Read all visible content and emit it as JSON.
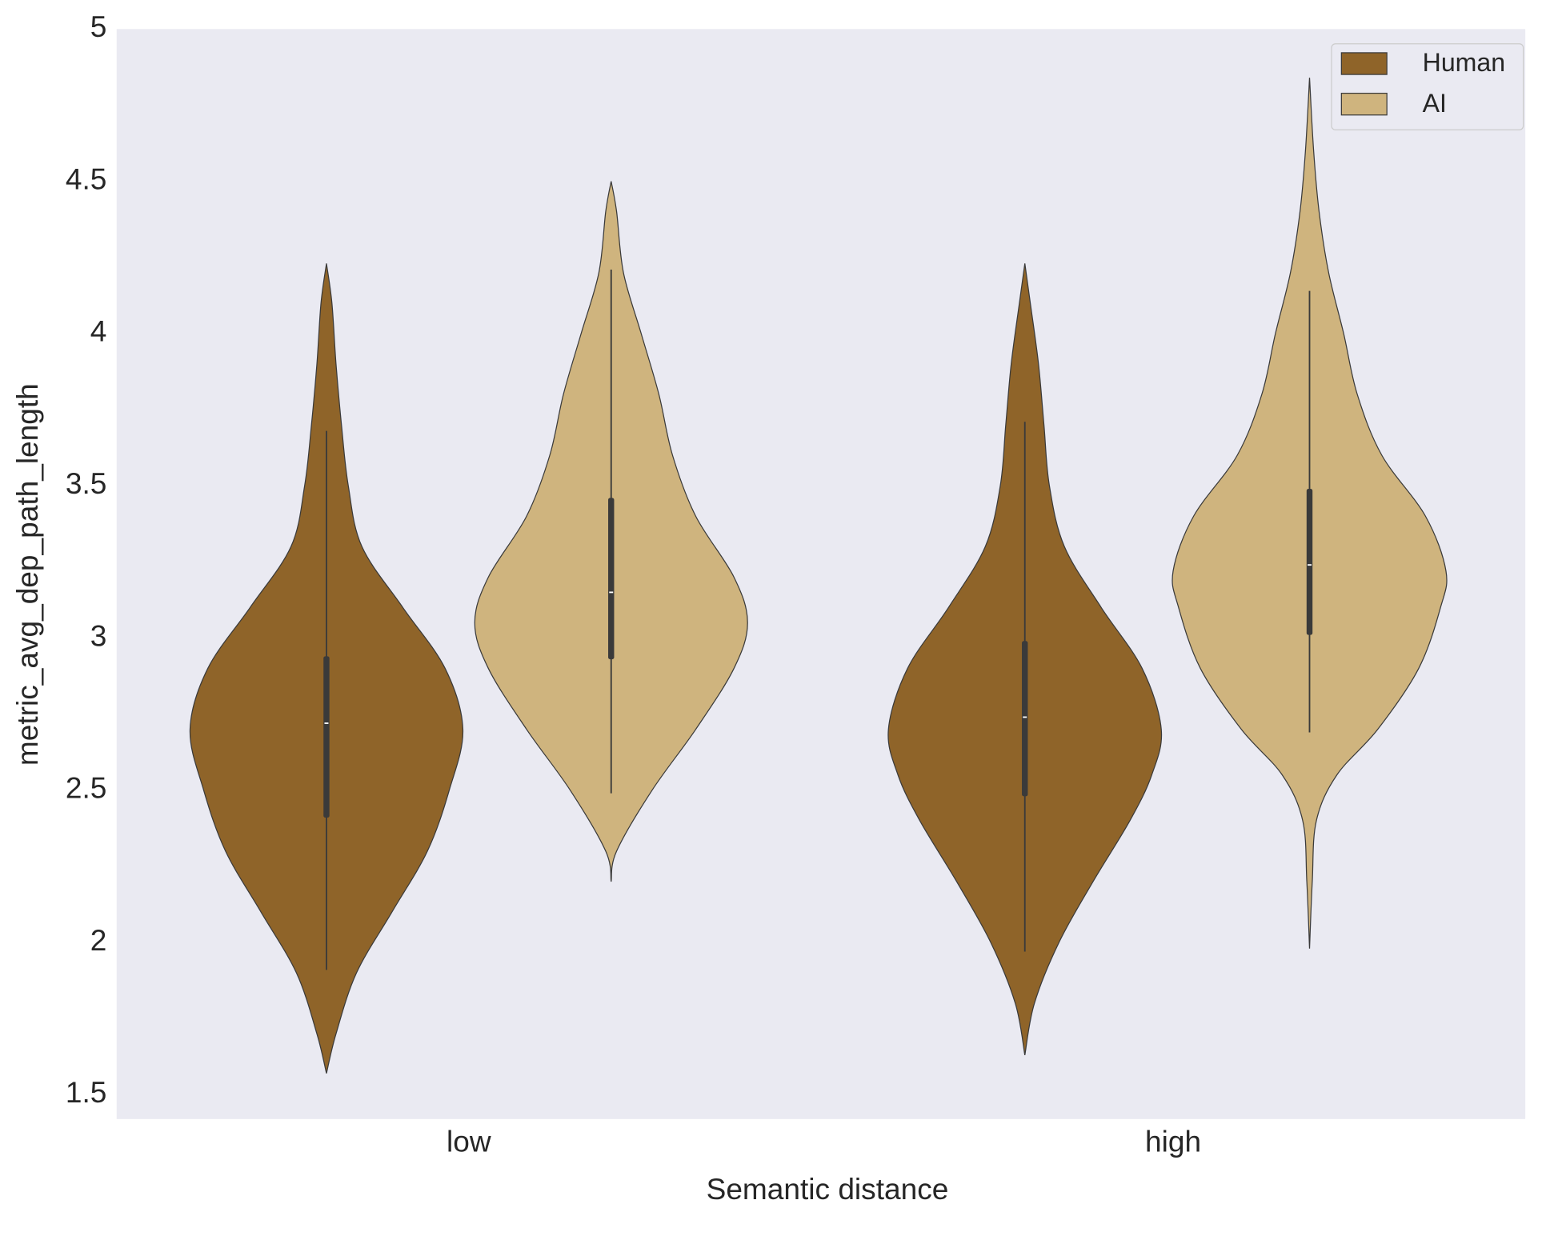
{
  "chart_data": {
    "type": "violin",
    "x_label": "Semantic distance",
    "y_label": "metric_avg_dep_path_length",
    "categories": [
      "low",
      "high"
    ],
    "ylim": [
      1.42,
      5.0
    ],
    "yticks": [
      1.5,
      2.0,
      2.5,
      3.0,
      3.5,
      4.0,
      4.5,
      5.0
    ],
    "grid": false,
    "legend": "upper right",
    "series": [
      {
        "name": "Human",
        "color": "#8f6429",
        "levels": [
          [
            1.57,
            1.7,
            1.9,
            2.1,
            2.3,
            2.5,
            2.7,
            2.9,
            3.1,
            3.3,
            3.5,
            3.7,
            3.9,
            4.1,
            4.23
          ],
          [
            1.63,
            1.8,
            2.0,
            2.2,
            2.4,
            2.55,
            2.7,
            2.9,
            3.1,
            3.3,
            3.5,
            3.7,
            3.9,
            4.1,
            4.23
          ]
        ],
        "density": [
          [
            0,
            0.07,
            0.22,
            0.48,
            0.74,
            0.9,
            1,
            0.87,
            0.56,
            0.26,
            0.16,
            0.11,
            0.07,
            0.04,
            0
          ],
          [
            0,
            0.07,
            0.25,
            0.5,
            0.77,
            0.93,
            1,
            0.86,
            0.56,
            0.29,
            0.18,
            0.14,
            0.1,
            0.04,
            0
          ]
        ],
        "whisker_low": [
          1.91,
          1.97
        ],
        "q1": [
          2.41,
          2.48
        ],
        "median": [
          2.72,
          2.74
        ],
        "q3": [
          2.94,
          2.99
        ],
        "whisker_high": [
          3.68,
          3.71
        ]
      },
      {
        "name": "AI",
        "color": "#cfb47e",
        "levels": [
          [
            2.2,
            2.3,
            2.5,
            2.7,
            2.9,
            3.05,
            3.2,
            3.4,
            3.6,
            3.8,
            4.0,
            4.2,
            4.4,
            4.5
          ],
          [
            1.98,
            2.2,
            2.4,
            2.55,
            2.7,
            2.9,
            3.1,
            3.22,
            3.4,
            3.6,
            3.8,
            4.0,
            4.2,
            4.4,
            4.6,
            4.84
          ]
        ],
        "density": [
          [
            0,
            0.04,
            0.3,
            0.62,
            0.9,
            1,
            0.9,
            0.62,
            0.45,
            0.35,
            0.22,
            0.09,
            0.04,
            0
          ],
          [
            0,
            0.02,
            0.05,
            0.2,
            0.5,
            0.8,
            0.96,
            1,
            0.85,
            0.53,
            0.35,
            0.25,
            0.14,
            0.07,
            0.03,
            0
          ]
        ],
        "whisker_low": [
          2.49,
          2.69
        ],
        "q1": [
          2.93,
          3.01
        ],
        "median": [
          3.15,
          3.24
        ],
        "q3": [
          3.46,
          3.49
        ],
        "whisker_high": [
          4.21,
          4.14
        ]
      }
    ]
  }
}
